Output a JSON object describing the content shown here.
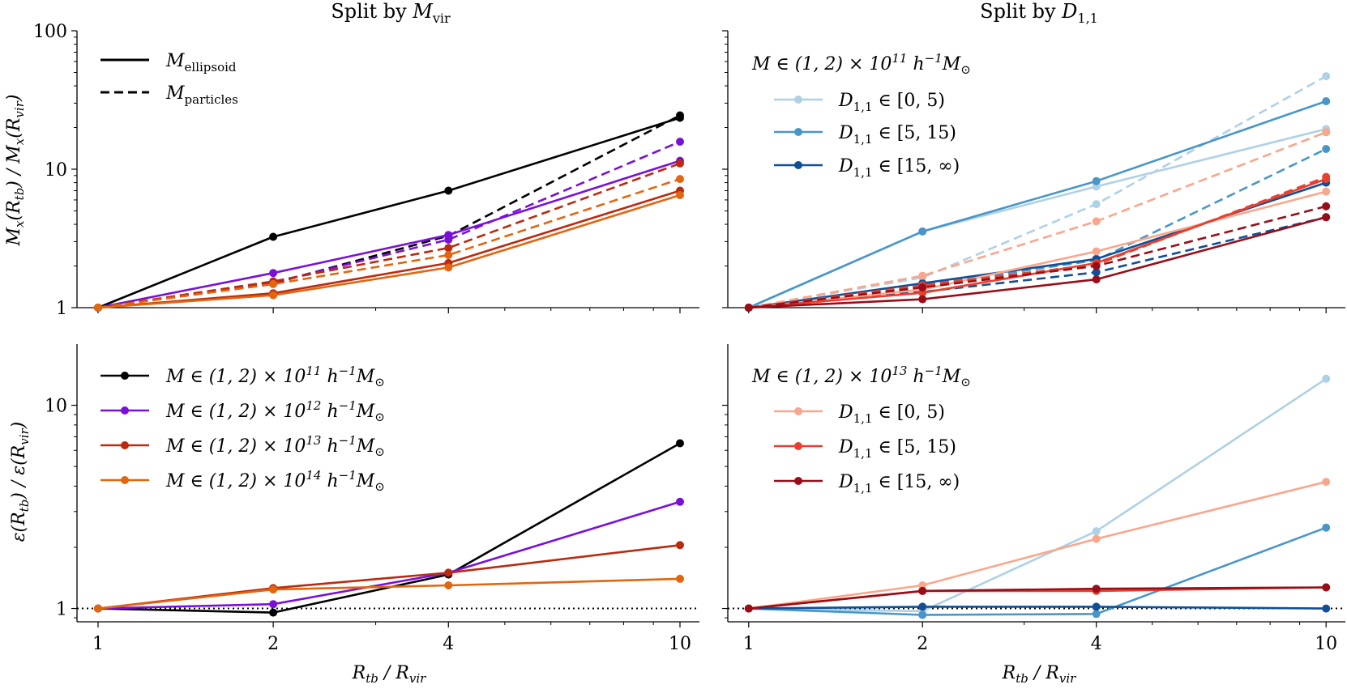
{
  "chart_data": [
    {
      "panel": "top-left",
      "type": "line",
      "title": "Split by M_vir",
      "xlabel": "",
      "ylabel": "M_x(R_tb) / M_x(R_vir)",
      "xscale": "log",
      "yscale": "log",
      "xlim": [
        0.92,
        10.8
      ],
      "ylim": [
        1,
        100
      ],
      "xticks": [
        1,
        2,
        4,
        10
      ],
      "yticks": [
        1,
        10,
        100
      ],
      "ytick_labels": [
        "1",
        "10",
        "100"
      ],
      "x": [
        1,
        2,
        4,
        10
      ],
      "legend": {
        "location": "top-left",
        "entries": [
          {
            "label": "M_ellipsoid",
            "style": "solid"
          },
          {
            "label": "M_particles",
            "style": "dashed"
          }
        ]
      },
      "series": [
        {
          "name": "M ∈ (1,2)×10^11 ellipsoid",
          "color": "#000000",
          "style": "solid",
          "values": [
            1,
            3.25,
            7.0,
            23.5
          ]
        },
        {
          "name": "M ∈ (1,2)×10^11 particles",
          "color": "#000000",
          "style": "dashed",
          "values": [
            1,
            1.5,
            3.3,
            24.5
          ]
        },
        {
          "name": "M ∈ (1,2)×10^12 ellipsoid",
          "color": "#7a10d8",
          "style": "solid",
          "values": [
            1,
            1.78,
            3.35,
            11.5
          ]
        },
        {
          "name": "M ∈ (1,2)×10^12 particles",
          "color": "#7a10d8",
          "style": "dashed",
          "values": [
            1,
            1.52,
            3.1,
            15.8
          ]
        },
        {
          "name": "M ∈ (1,2)×10^13 ellipsoid",
          "color": "#bb2a0f",
          "style": "solid",
          "values": [
            1,
            1.27,
            2.1,
            7.0
          ]
        },
        {
          "name": "M ∈ (1,2)×10^13 particles",
          "color": "#bb2a0f",
          "style": "dashed",
          "values": [
            1,
            1.55,
            2.7,
            11.0
          ]
        },
        {
          "name": "M ∈ (1,2)×10^14 ellipsoid",
          "color": "#e0660f",
          "style": "solid",
          "values": [
            1,
            1.23,
            1.95,
            6.5
          ]
        },
        {
          "name": "M ∈ (1,2)×10^14 particles",
          "color": "#e0660f",
          "style": "dashed",
          "values": [
            1,
            1.48,
            2.4,
            8.5
          ]
        }
      ]
    },
    {
      "panel": "top-right",
      "type": "line",
      "title": "Split by D_1,1",
      "xlabel": "",
      "ylabel": "",
      "xscale": "log",
      "yscale": "log",
      "xlim": [
        0.92,
        10.8
      ],
      "ylim": [
        1,
        100
      ],
      "xticks": [
        1,
        2,
        4,
        10
      ],
      "yticks": [
        1,
        10,
        100
      ],
      "x": [
        1,
        2,
        4,
        10
      ],
      "legend": {
        "location": "top-left",
        "header": "M ∈ (1, 2) × 10^11 h^-1 M_⊙",
        "entries": [
          {
            "label": "D_1,1 ∈ [0, 5)",
            "color": "#aed1e6"
          },
          {
            "label": "D_1,1 ∈ [5, 15)",
            "color": "#4896c8"
          },
          {
            "label": "D_1,1 ∈ [15, ∞)",
            "color": "#0e4f97"
          }
        ]
      },
      "series": [
        {
          "name": "10^11 D[0,5) ellipsoid",
          "color": "#aed1e6",
          "style": "solid",
          "values": [
            1,
            3.55,
            7.5,
            19.5
          ]
        },
        {
          "name": "10^11 D[0,5) particles",
          "color": "#aed1e6",
          "style": "dashed",
          "values": [
            1,
            1.65,
            5.6,
            47
          ]
        },
        {
          "name": "10^11 D[5,15) ellipsoid",
          "color": "#4896c8",
          "style": "solid",
          "values": [
            1,
            3.55,
            8.2,
            31
          ]
        },
        {
          "name": "10^11 D[5,15) particles",
          "color": "#4896c8",
          "style": "dashed",
          "values": [
            1,
            1.45,
            2.2,
            14
          ]
        },
        {
          "name": "10^11 D[15,inf) ellipsoid",
          "color": "#0e4f97",
          "style": "solid",
          "values": [
            1,
            1.5,
            2.25,
            8.0
          ]
        },
        {
          "name": "10^11 D[15,inf) particles",
          "color": "#0e4f97",
          "style": "dashed",
          "values": [
            1,
            1.3,
            1.8,
            4.5
          ]
        },
        {
          "name": "10^13 D[0,5) ellipsoid",
          "color": "#f9a68b",
          "style": "solid",
          "values": [
            1,
            1.35,
            2.55,
            6.9
          ]
        },
        {
          "name": "10^13 D[0,5) particles",
          "color": "#f9a68b",
          "style": "dashed",
          "values": [
            1,
            1.7,
            4.2,
            18.5
          ]
        },
        {
          "name": "10^13 D[5,15) ellipsoid",
          "color": "#e8402e",
          "style": "solid",
          "values": [
            1,
            1.28,
            2.1,
            8.5
          ]
        },
        {
          "name": "10^13 D[5,15) particles",
          "color": "#e8402e",
          "style": "dashed",
          "values": [
            1,
            1.45,
            2.05,
            8.8
          ]
        },
        {
          "name": "10^13 D[15,inf) ellipsoid",
          "color": "#980d18",
          "style": "solid",
          "values": [
            1,
            1.15,
            1.6,
            4.5
          ]
        },
        {
          "name": "10^13 D[15,inf) particles",
          "color": "#980d18",
          "style": "dashed",
          "values": [
            1,
            1.4,
            2.0,
            5.4
          ]
        }
      ]
    },
    {
      "panel": "bottom-left",
      "type": "line",
      "title": "",
      "xlabel": "R_tb / R_vir",
      "ylabel": "ε(R_tb) / ε(R_vir)",
      "xscale": "log",
      "yscale": "log",
      "xlim": [
        0.92,
        10.8
      ],
      "ylim": [
        0.86,
        20
      ],
      "xticks": [
        1,
        2,
        4,
        10
      ],
      "xtick_labels": [
        "1",
        "2",
        "4",
        "10"
      ],
      "yticks": [
        1,
        10
      ],
      "ytick_labels": [
        "1",
        "10"
      ],
      "reference_line": {
        "y": 1,
        "style": "dotted"
      },
      "x": [
        1,
        2,
        4,
        10
      ],
      "legend": {
        "location": "top-left",
        "entries": [
          {
            "label": "M ∈ (1, 2) × 10^11 h^-1 M_⊙",
            "color": "#000000"
          },
          {
            "label": "M ∈ (1, 2) × 10^12 h^-1 M_⊙",
            "color": "#7a10d8"
          },
          {
            "label": "M ∈ (1, 2) × 10^13 h^-1 M_⊙",
            "color": "#bb2a0f"
          },
          {
            "label": "M ∈ (1, 2) × 10^14 h^-1 M_⊙",
            "color": "#e0660f"
          }
        ]
      },
      "series": [
        {
          "name": "10^11",
          "color": "#000000",
          "values": [
            1,
            0.955,
            1.47,
            6.5
          ]
        },
        {
          "name": "10^12",
          "color": "#7a10d8",
          "values": [
            1,
            1.05,
            1.5,
            3.35
          ]
        },
        {
          "name": "10^13",
          "color": "#bb2a0f",
          "values": [
            1,
            1.26,
            1.5,
            2.05
          ]
        },
        {
          "name": "10^14",
          "color": "#e0660f",
          "values": [
            1,
            1.24,
            1.3,
            1.4
          ]
        }
      ]
    },
    {
      "panel": "bottom-right",
      "type": "line",
      "title": "",
      "xlabel": "R_tb / R_vir",
      "ylabel": "",
      "xscale": "log",
      "yscale": "log",
      "xlim": [
        0.92,
        10.8
      ],
      "ylim": [
        0.86,
        20
      ],
      "xticks": [
        1,
        2,
        4,
        10
      ],
      "xtick_labels": [
        "1",
        "2",
        "4",
        "10"
      ],
      "yticks": [
        1,
        10
      ],
      "reference_line": {
        "y": 1,
        "style": "dotted"
      },
      "x": [
        1,
        2,
        4,
        10
      ],
      "legend": {
        "location": "top-left",
        "header": "M ∈ (1, 2) × 10^13 h^-1 M_⊙",
        "entries": [
          {
            "label": "D_1,1 ∈ [0, 5)",
            "color": "#f9a68b"
          },
          {
            "label": "D_1,1 ∈ [5, 15)",
            "color": "#e8402e"
          },
          {
            "label": "D_1,1 ∈ [15, ∞)",
            "color": "#980d18"
          }
        ]
      },
      "series": [
        {
          "name": "10^11 D[0,5)",
          "color": "#aed1e6",
          "values": [
            1,
            0.97,
            2.4,
            13.5
          ]
        },
        {
          "name": "10^11 D[5,15)",
          "color": "#4896c8",
          "values": [
            1,
            0.93,
            0.94,
            2.5
          ]
        },
        {
          "name": "10^11 D[15,inf)",
          "color": "#0e4f97",
          "values": [
            1,
            1.02,
            1.02,
            1.0
          ]
        },
        {
          "name": "10^13 D[0,5)",
          "color": "#f9a68b",
          "values": [
            1,
            1.3,
            2.2,
            4.2
          ]
        },
        {
          "name": "10^13 D[5,15)",
          "color": "#e8402e",
          "values": [
            1,
            1.22,
            1.22,
            1.27
          ]
        },
        {
          "name": "10^13 D[15,inf)",
          "color": "#980d18",
          "values": [
            1,
            1.22,
            1.25,
            1.27
          ]
        }
      ]
    }
  ]
}
